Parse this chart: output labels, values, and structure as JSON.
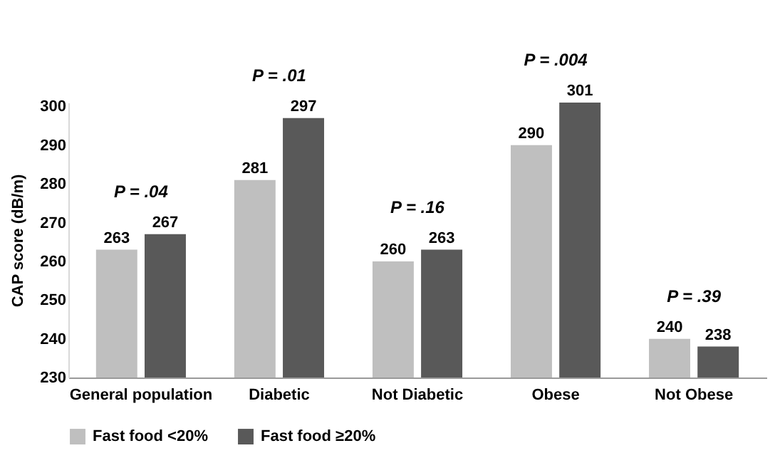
{
  "chart_data": {
    "type": "bar",
    "ylabel": "CAP score (dB/m)",
    "categories": [
      "General population",
      "Diabetic",
      "Not Diabetic",
      "Obese",
      "Not Obese"
    ],
    "series": [
      {
        "name": "Fast food <20%",
        "color": "#bfbfbf",
        "values": [
          263,
          281,
          260,
          290,
          240
        ]
      },
      {
        "name": "Fast food ≥20%",
        "color": "#595959",
        "values": [
          267,
          297,
          263,
          301,
          238
        ]
      }
    ],
    "ylim": [
      230,
      301
    ],
    "yticks": [
      230,
      240,
      250,
      260,
      270,
      280,
      290,
      300
    ],
    "data_labels": true,
    "grid": false,
    "legend": "bottom",
    "annotations": [
      "P = .04",
      "P = .01",
      "P = .16",
      "P = .004",
      "P = .39"
    ]
  }
}
